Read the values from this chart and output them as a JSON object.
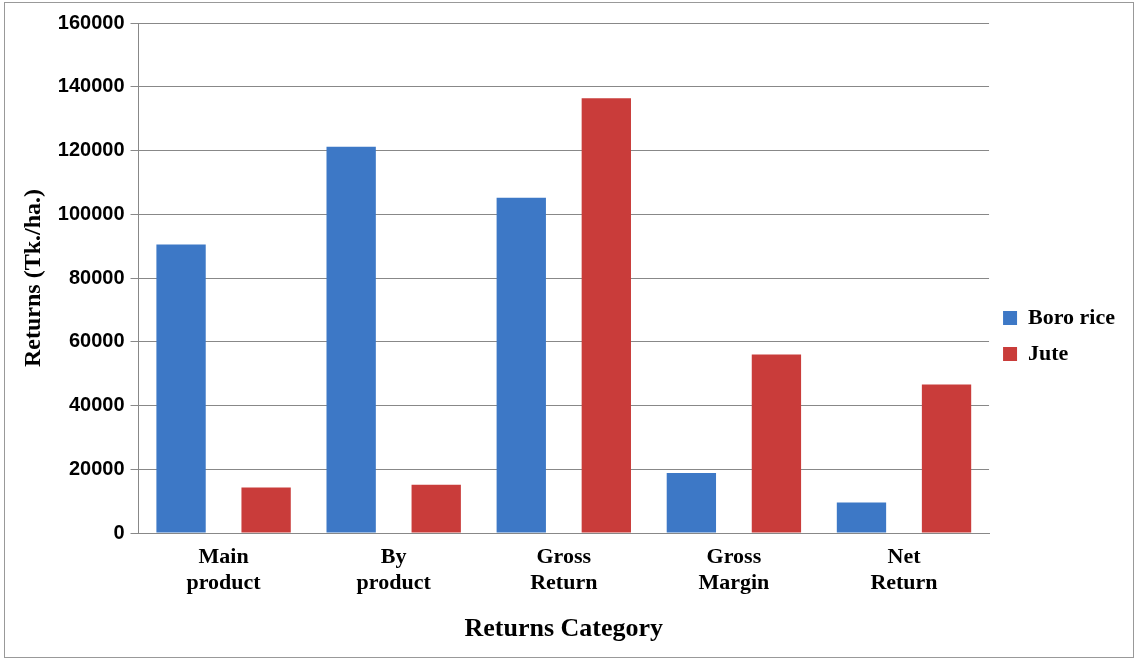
{
  "chart_data": {
    "type": "bar",
    "xlabel": "Returns Category",
    "ylabel": "Returns (Tk./ha.)",
    "categories": [
      "Main product",
      "By product",
      "Gross Return",
      "Gross Margin",
      "Net Return"
    ],
    "series": [
      {
        "name": "Boro rice",
        "color": "#3d78c6",
        "values": [
          90500,
          121200,
          105200,
          18800,
          9600
        ]
      },
      {
        "name": "Jute",
        "color": "#c93c3a",
        "values": [
          14300,
          15100,
          136400,
          56000,
          46600
        ]
      }
    ],
    "ylim": [
      0,
      160000
    ],
    "yticks": [
      0,
      20000,
      40000,
      60000,
      80000,
      100000,
      120000,
      140000,
      160000
    ],
    "grid": "y",
    "legend": "right"
  }
}
